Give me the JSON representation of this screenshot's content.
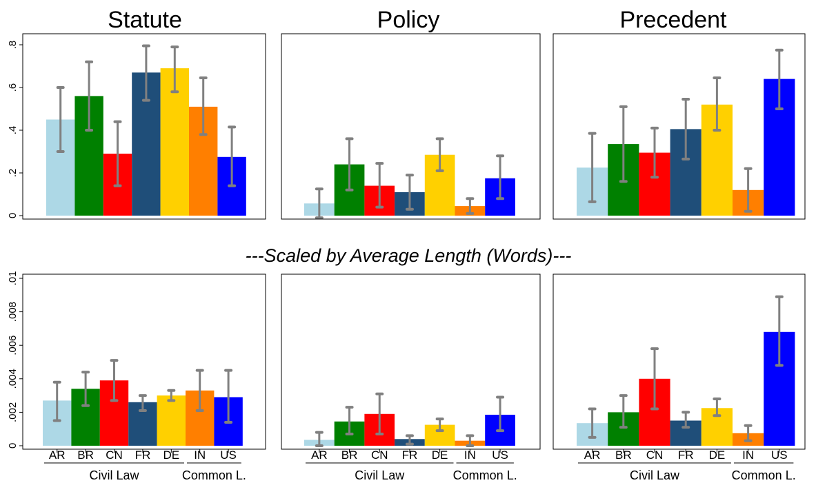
{
  "figure": {
    "titles": [
      "Statute",
      "Policy",
      "Precedent"
    ],
    "middle_title": "---Scaled by Average Length (Words)---",
    "groups": [
      {
        "label": "Civil Law",
        "members": [
          "AR",
          "BR",
          "CN",
          "FR",
          "DE"
        ]
      },
      {
        "label": "Common L.",
        "members": [
          "IN",
          "US"
        ]
      }
    ]
  },
  "chart_data": [
    {
      "type": "bar",
      "title": "Statute",
      "row": "top",
      "categories": [
        "AR",
        "BR",
        "CN",
        "FR",
        "DE",
        "IN",
        "US"
      ],
      "values": [
        0.45,
        0.56,
        0.29,
        0.67,
        0.69,
        0.51,
        0.275
      ],
      "ci_low": [
        0.3,
        0.4,
        0.14,
        0.54,
        0.58,
        0.38,
        0.14
      ],
      "ci_high": [
        0.6,
        0.72,
        0.44,
        0.795,
        0.79,
        0.645,
        0.415
      ],
      "ylim": [
        0,
        0.8
      ],
      "yticks": [
        0,
        0.2,
        0.4,
        0.6,
        0.8
      ],
      "ytick_labels": [
        "0",
        ".2",
        ".4",
        ".6",
        ".8"
      ],
      "show_yticks": true
    },
    {
      "type": "bar",
      "title": "Policy",
      "row": "top",
      "categories": [
        "AR",
        "BR",
        "CN",
        "FR",
        "DE",
        "IN",
        "US"
      ],
      "values": [
        0.057,
        0.24,
        0.14,
        0.11,
        0.285,
        0.045,
        0.175
      ],
      "ci_low": [
        -0.01,
        0.12,
        0.04,
        0.03,
        0.21,
        0.01,
        0.08
      ],
      "ci_high": [
        0.125,
        0.36,
        0.245,
        0.19,
        0.36,
        0.08,
        0.28
      ],
      "ylim": [
        0,
        0.8
      ],
      "show_yticks": false
    },
    {
      "type": "bar",
      "title": "Precedent",
      "row": "top",
      "categories": [
        "AR",
        "BR",
        "CN",
        "FR",
        "DE",
        "IN",
        "US"
      ],
      "values": [
        0.225,
        0.335,
        0.295,
        0.405,
        0.52,
        0.12,
        0.64
      ],
      "ci_low": [
        0.065,
        0.16,
        0.18,
        0.265,
        0.4,
        0.02,
        0.5
      ],
      "ci_high": [
        0.385,
        0.51,
        0.41,
        0.545,
        0.645,
        0.22,
        0.775
      ],
      "ylim": [
        0,
        0.8
      ],
      "show_yticks": false
    },
    {
      "type": "bar",
      "row": "bottom",
      "categories": [
        "AR",
        "BR",
        "CN",
        "FR",
        "DE",
        "IN",
        "US"
      ],
      "values": [
        0.0027,
        0.0034,
        0.0039,
        0.0026,
        0.003,
        0.0033,
        0.0029
      ],
      "ci_low": [
        0.0015,
        0.0024,
        0.0027,
        0.0021,
        0.0027,
        0.0021,
        0.0014
      ],
      "ci_high": [
        0.0038,
        0.0044,
        0.0051,
        0.003,
        0.0033,
        0.0045,
        0.0045
      ],
      "ylim": [
        0,
        0.01
      ],
      "yticks": [
        0,
        0.002,
        0.004,
        0.006,
        0.008,
        0.01
      ],
      "ytick_labels": [
        "0",
        ".002",
        ".004",
        ".006",
        ".008",
        ".01"
      ],
      "show_yticks": true
    },
    {
      "type": "bar",
      "row": "bottom",
      "categories": [
        "AR",
        "BR",
        "CN",
        "FR",
        "DE",
        "IN",
        "US"
      ],
      "values": [
        0.00035,
        0.00145,
        0.0019,
        0.0004,
        0.00125,
        0.0003,
        0.00185
      ],
      "ci_low": [
        0.0,
        0.0007,
        0.0007,
        0.0001,
        0.0009,
        0.0,
        0.0009
      ],
      "ci_high": [
        0.0008,
        0.0023,
        0.0031,
        0.0006,
        0.0016,
        0.0006,
        0.0029
      ],
      "ylim": [
        0,
        0.01
      ],
      "show_yticks": false
    },
    {
      "type": "bar",
      "row": "bottom",
      "categories": [
        "AR",
        "BR",
        "CN",
        "FR",
        "DE",
        "IN",
        "US"
      ],
      "values": [
        0.00135,
        0.002,
        0.004,
        0.0015,
        0.00225,
        0.00075,
        0.0068
      ],
      "ci_low": [
        0.0005,
        0.0011,
        0.0022,
        0.0011,
        0.0018,
        0.0003,
        0.0048
      ],
      "ci_high": [
        0.0022,
        0.003,
        0.0058,
        0.002,
        0.0028,
        0.0012,
        0.0089
      ],
      "ylim": [
        0,
        0.01
      ],
      "show_yticks": false
    }
  ],
  "colors": {
    "AR": "#add8e6",
    "BR": "#008000",
    "CN": "#ff0000",
    "FR": "#1f4e79",
    "DE": "#ffd000",
    "IN": "#ff7f00",
    "US": "#0000ff",
    "error_bar": "#808080",
    "frame": "#000000"
  }
}
